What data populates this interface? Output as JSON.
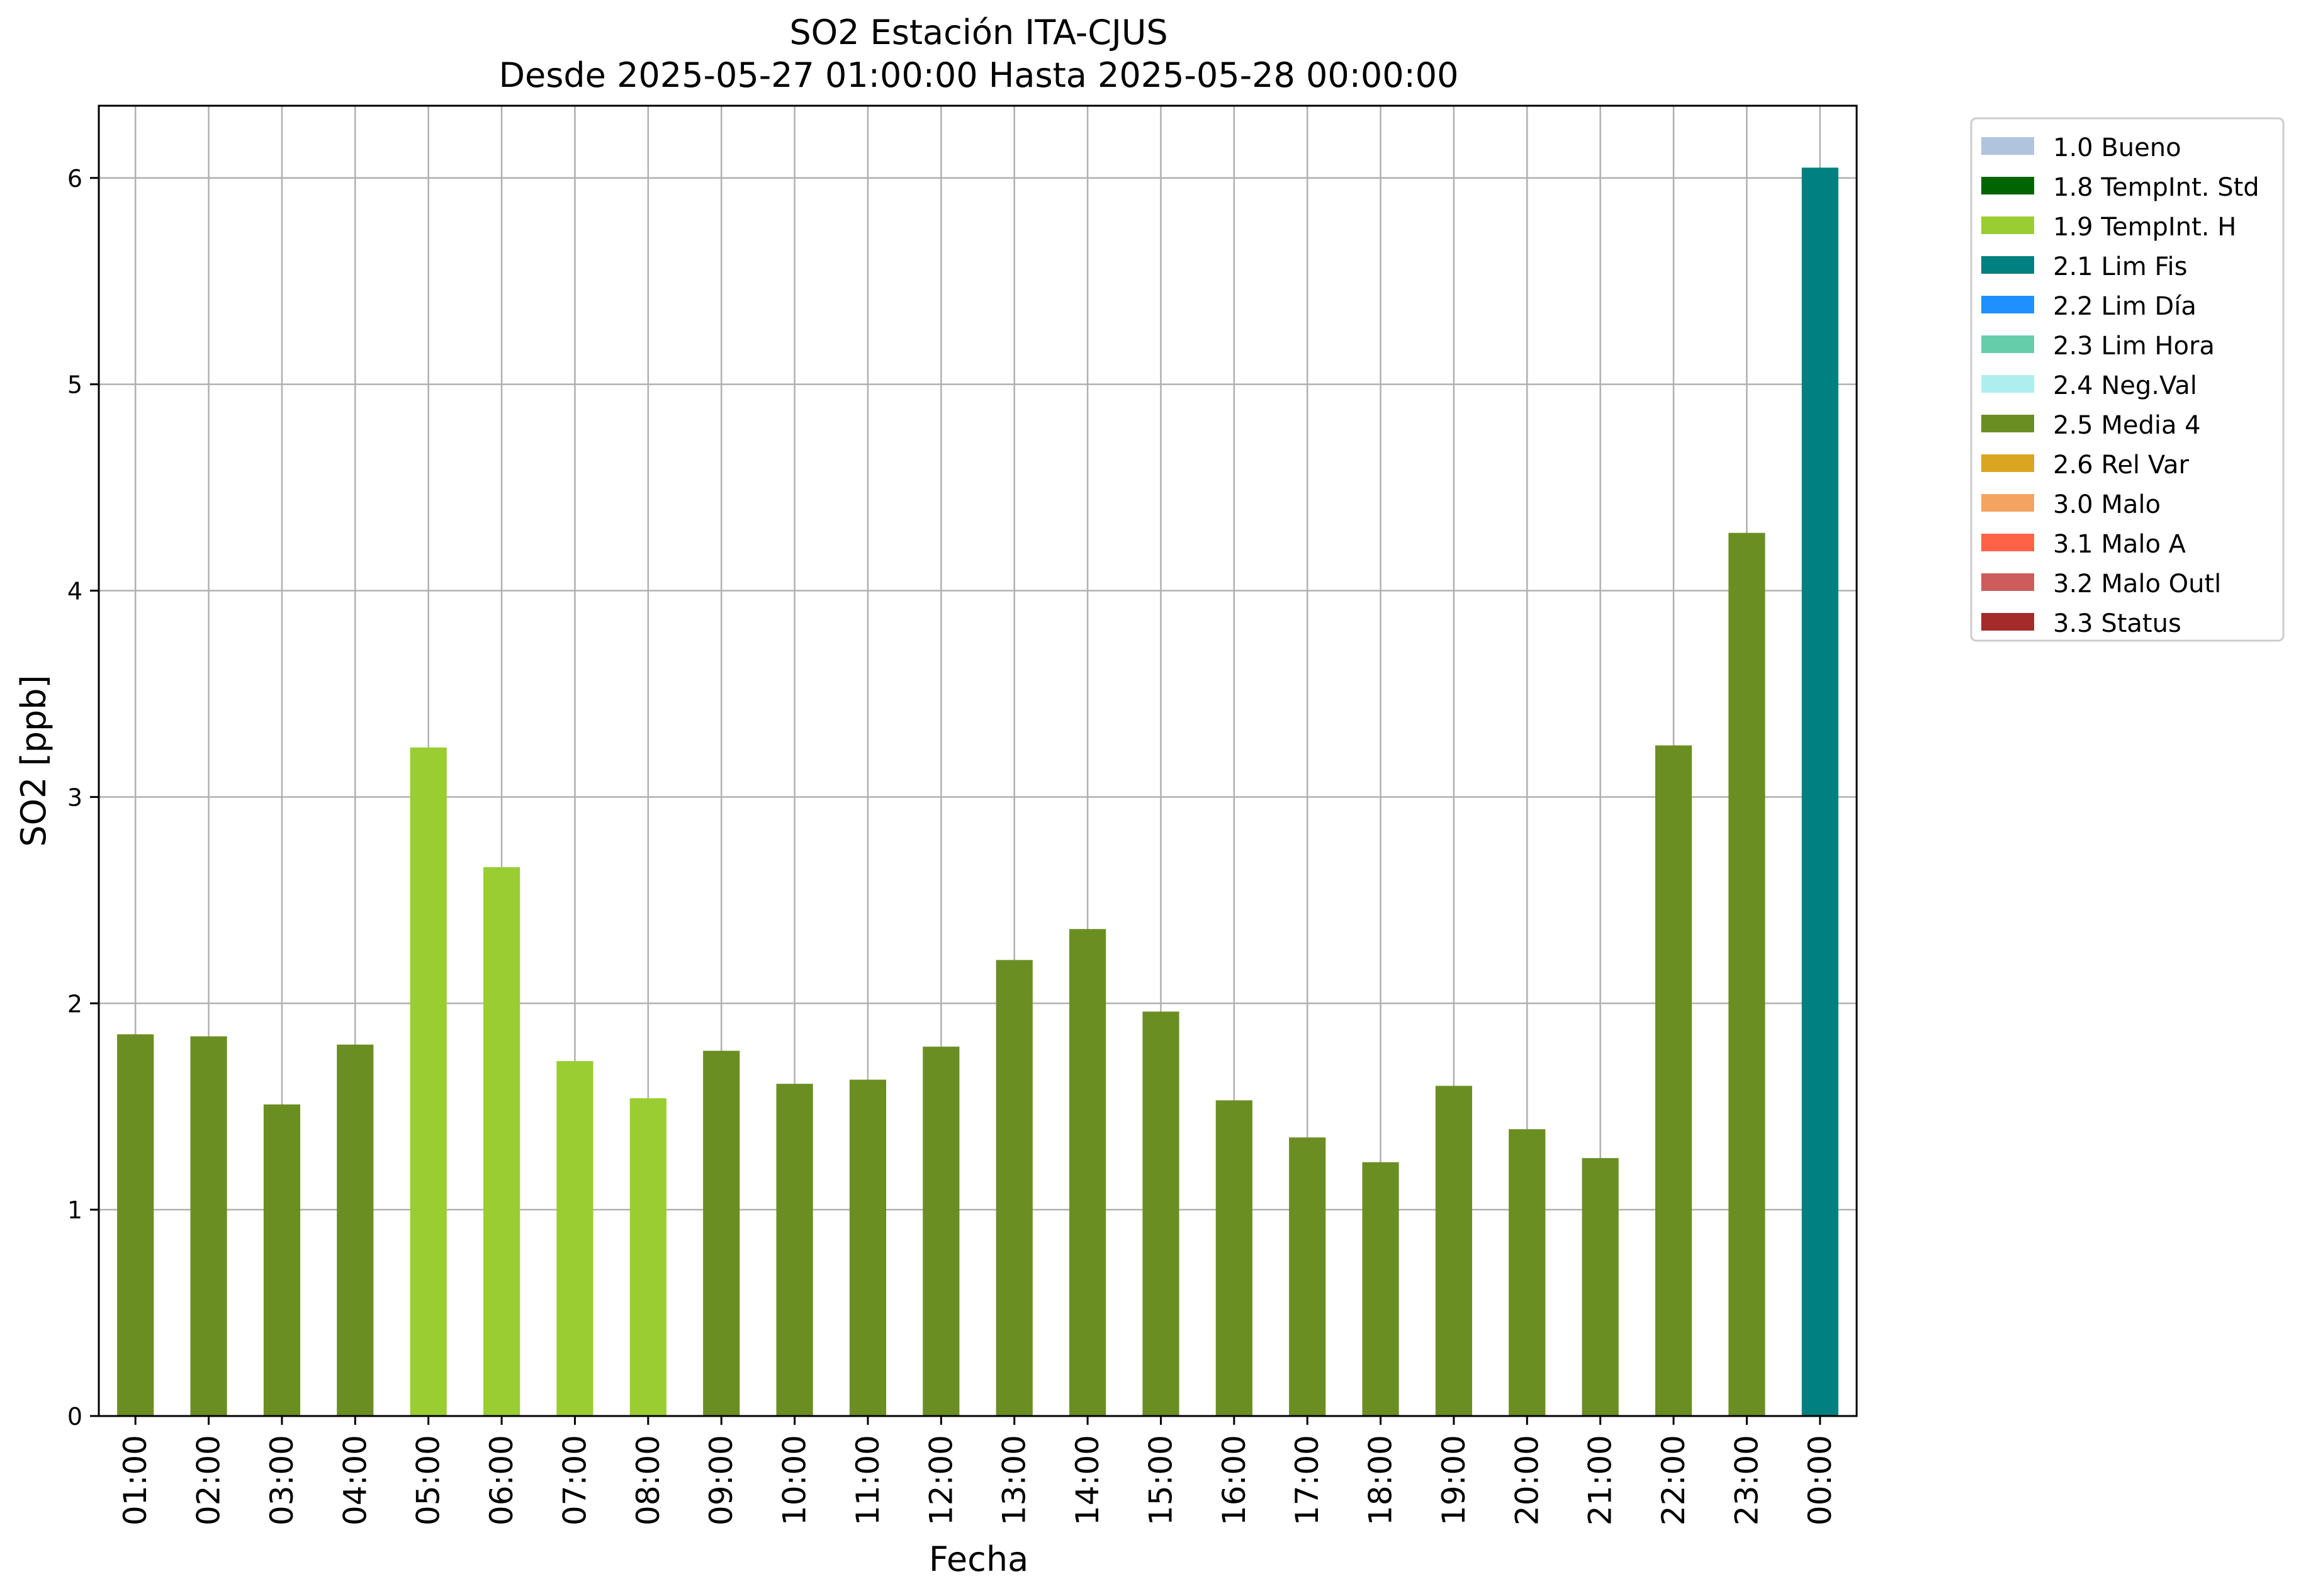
{
  "chart_data": {
    "type": "bar",
    "title": "SO2 Estación ITA-CJUS",
    "subtitle": "Desde 2025-05-27 01:00:00 Hasta 2025-05-28 00:00:00",
    "xlabel": "Fecha",
    "ylabel": "SO2 [ppb]",
    "ylim": [
      0,
      6.35
    ],
    "yticks": [
      0,
      1,
      2,
      3,
      4,
      5,
      6
    ],
    "grid": true,
    "legend_position": "outside-top-right",
    "categories": [
      "01:00",
      "02:00",
      "03:00",
      "04:00",
      "05:00",
      "06:00",
      "07:00",
      "08:00",
      "09:00",
      "10:00",
      "11:00",
      "12:00",
      "13:00",
      "14:00",
      "15:00",
      "16:00",
      "17:00",
      "18:00",
      "19:00",
      "20:00",
      "21:00",
      "22:00",
      "23:00",
      "00:00"
    ],
    "values": [
      1.85,
      1.84,
      1.51,
      1.8,
      3.24,
      2.66,
      1.72,
      1.54,
      1.77,
      1.61,
      1.63,
      1.79,
      2.21,
      2.36,
      1.96,
      1.53,
      1.35,
      1.23,
      1.6,
      1.39,
      1.25,
      3.25,
      4.28,
      6.05
    ],
    "flags": [
      "2.5",
      "2.5",
      "2.5",
      "2.5",
      "1.9",
      "1.9",
      "1.9",
      "1.9",
      "2.5",
      "2.5",
      "2.5",
      "2.5",
      "2.5",
      "2.5",
      "2.5",
      "2.5",
      "2.5",
      "2.5",
      "2.5",
      "2.5",
      "2.5",
      "2.5",
      "2.5",
      "2.1"
    ],
    "legend": [
      {
        "code": "1.0",
        "label": "1.0 Bueno",
        "color": "#b0c4de"
      },
      {
        "code": "1.8",
        "label": "1.8 TempInt. Std",
        "color": "#006400"
      },
      {
        "code": "1.9",
        "label": "1.9 TempInt. H",
        "color": "#9acd32"
      },
      {
        "code": "2.1",
        "label": "2.1 Lim Fis",
        "color": "#008080"
      },
      {
        "code": "2.2",
        "label": "2.2 Lim Día",
        "color": "#1e90ff"
      },
      {
        "code": "2.3",
        "label": "2.3 Lim Hora",
        "color": "#66cdaa"
      },
      {
        "code": "2.4",
        "label": "2.4 Neg.Val",
        "color": "#afeeee"
      },
      {
        "code": "2.5",
        "label": "2.5 Media 4",
        "color": "#6b8e23"
      },
      {
        "code": "2.6",
        "label": "2.6 Rel Var",
        "color": "#daa520"
      },
      {
        "code": "3.0",
        "label": "3.0 Malo",
        "color": "#f4a460"
      },
      {
        "code": "3.1",
        "label": "3.1 Malo A",
        "color": "#ff6347"
      },
      {
        "code": "3.2",
        "label": "3.2 Malo Outl",
        "color": "#cd5c5c"
      },
      {
        "code": "3.3",
        "label": "3.3 Status",
        "color": "#a52a2a"
      }
    ]
  }
}
